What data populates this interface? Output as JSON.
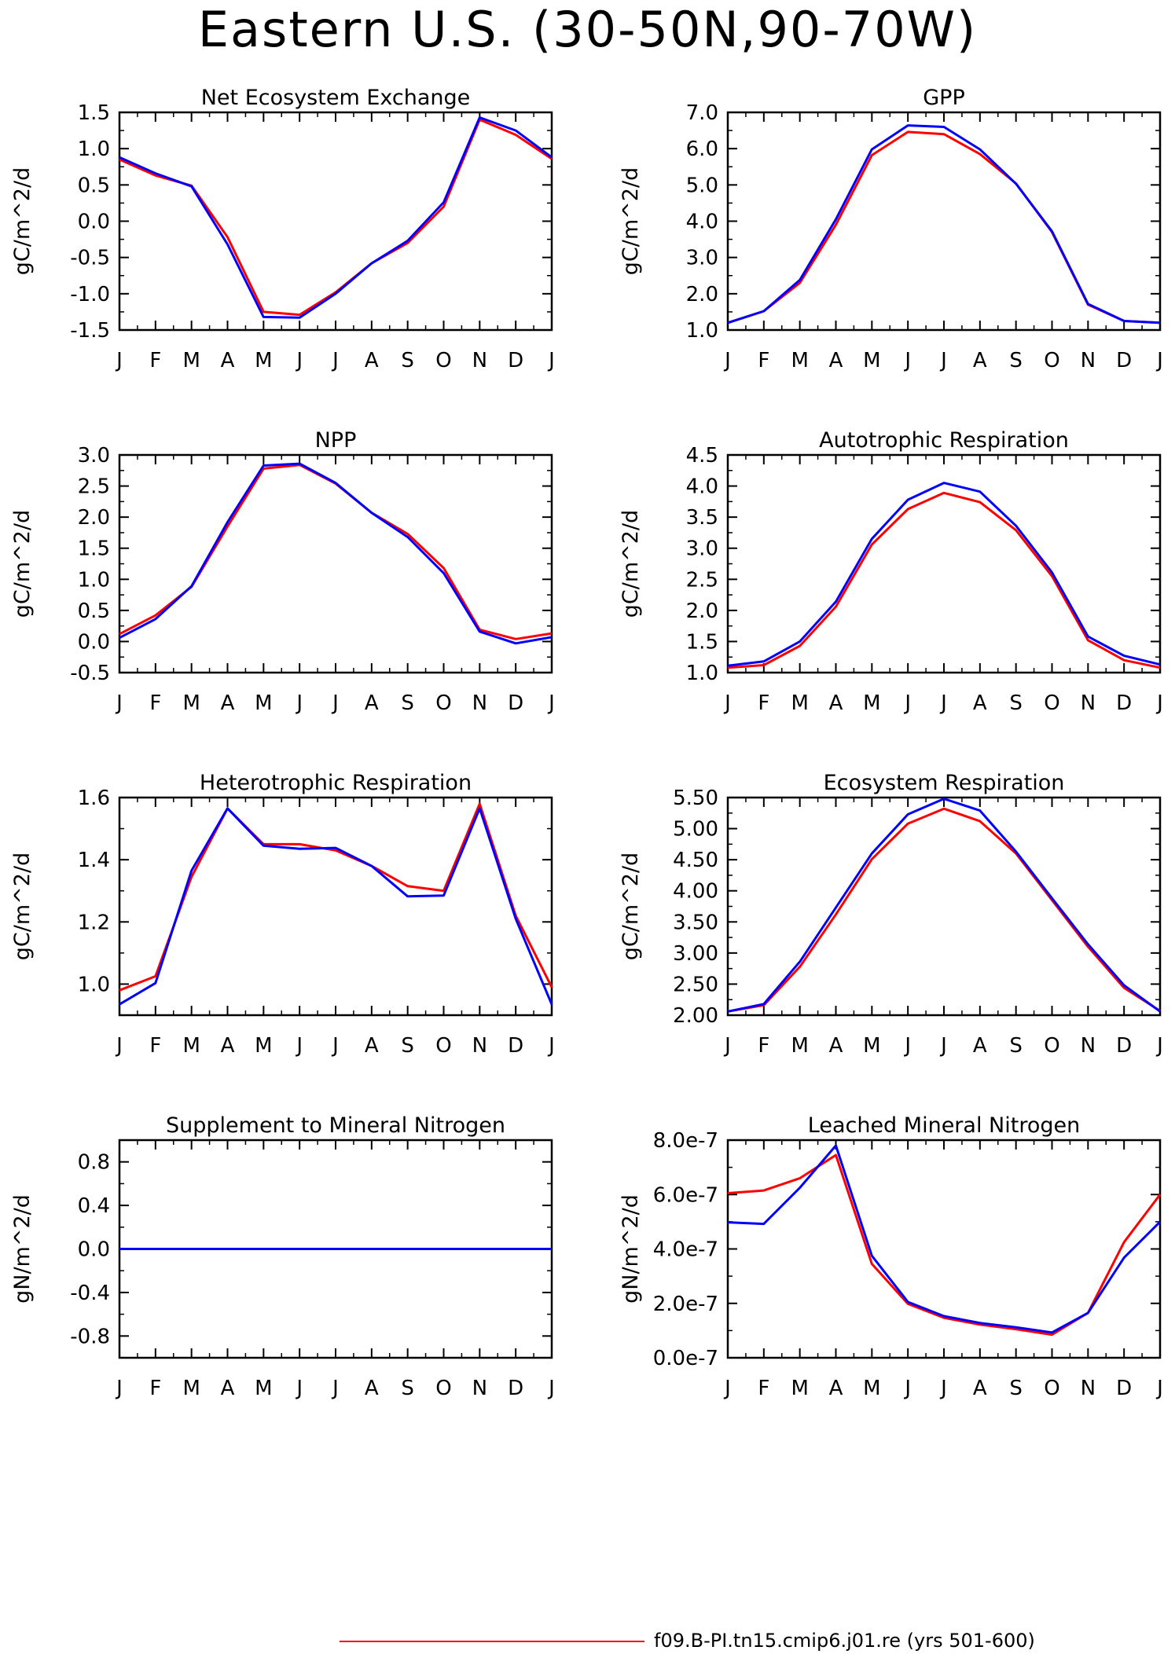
{
  "title": "Eastern U.S. (30-50N,90-70W)",
  "legend": {
    "label": "f09.B-PI.tn15.cmip6.j01.re (yrs 501-600)",
    "color": "#ff0000"
  },
  "colors": {
    "series_red": "#ff0000",
    "series_blue": "#0000ff",
    "axis": "#000000"
  },
  "chart_data": [
    {
      "type": "line",
      "title": "Net Ecosystem Exchange",
      "ylabel": "gC/m^2/d",
      "categories": [
        "J",
        "F",
        "M",
        "A",
        "M",
        "J",
        "J",
        "A",
        "S",
        "O",
        "N",
        "D",
        "J"
      ],
      "ylim": [
        -1.5,
        1.5
      ],
      "yticks": [
        -1.5,
        -1.0,
        -0.5,
        0.0,
        0.5,
        1.0,
        1.5
      ],
      "ytick_labels": [
        "-1.5",
        "-1.0",
        "-0.5",
        "0.0",
        "0.5",
        "1.0",
        "1.5"
      ],
      "series": [
        {
          "color": "#ff0000",
          "values": [
            0.85,
            0.63,
            0.49,
            -0.22,
            -1.25,
            -1.29,
            -0.98,
            -0.58,
            -0.3,
            0.2,
            1.4,
            1.19,
            0.86
          ]
        },
        {
          "color": "#0000ff",
          "values": [
            0.88,
            0.66,
            0.48,
            -0.32,
            -1.32,
            -1.33,
            -1.0,
            -0.58,
            -0.27,
            0.26,
            1.43,
            1.25,
            0.88
          ]
        }
      ]
    },
    {
      "type": "line",
      "title": "GPP",
      "ylabel": "gC/m^2/d",
      "categories": [
        "J",
        "F",
        "M",
        "A",
        "M",
        "J",
        "J",
        "A",
        "S",
        "O",
        "N",
        "D",
        "J"
      ],
      "ylim": [
        1.0,
        7.0
      ],
      "yticks": [
        1,
        2,
        3,
        4,
        5,
        6,
        7
      ],
      "ytick_labels": [
        "1.0",
        "2.0",
        "3.0",
        "4.0",
        "5.0",
        "6.0",
        "7.0"
      ],
      "series": [
        {
          "color": "#ff0000",
          "values": [
            1.2,
            1.52,
            2.3,
            3.9,
            5.82,
            6.46,
            6.4,
            5.85,
            5.04,
            3.7,
            1.7,
            1.25,
            1.2
          ]
        },
        {
          "color": "#0000ff",
          "values": [
            1.2,
            1.52,
            2.38,
            4.05,
            5.98,
            6.64,
            6.6,
            5.98,
            5.03,
            3.72,
            1.72,
            1.25,
            1.2
          ]
        }
      ]
    },
    {
      "type": "line",
      "title": "NPP",
      "ylabel": "gC/m^2/d",
      "categories": [
        "J",
        "F",
        "M",
        "A",
        "M",
        "J",
        "J",
        "A",
        "S",
        "O",
        "N",
        "D",
        "J"
      ],
      "ylim": [
        -0.5,
        3.0
      ],
      "yticks": [
        -0.5,
        0,
        0.5,
        1,
        1.5,
        2,
        2.5,
        3
      ],
      "ytick_labels": [
        "-0.5",
        "0.0",
        "0.5",
        "1.0",
        "1.5",
        "2.0",
        "2.5",
        "3.0"
      ],
      "series": [
        {
          "color": "#ff0000",
          "values": [
            0.12,
            0.42,
            0.88,
            1.85,
            2.78,
            2.84,
            2.54,
            2.07,
            1.73,
            1.18,
            0.19,
            0.04,
            0.13
          ]
        },
        {
          "color": "#0000ff",
          "values": [
            0.06,
            0.36,
            0.89,
            1.92,
            2.83,
            2.86,
            2.55,
            2.07,
            1.68,
            1.1,
            0.16,
            -0.03,
            0.07
          ]
        }
      ]
    },
    {
      "type": "line",
      "title": "Autotrophic Respiration",
      "ylabel": "gC/m^2/d",
      "categories": [
        "J",
        "F",
        "M",
        "A",
        "M",
        "J",
        "J",
        "A",
        "S",
        "O",
        "N",
        "D",
        "J"
      ],
      "ylim": [
        1.0,
        4.5
      ],
      "yticks": [
        1,
        1.5,
        2,
        2.5,
        3,
        3.5,
        4,
        4.5
      ],
      "ytick_labels": [
        "1.0",
        "1.5",
        "2.0",
        "2.5",
        "3.0",
        "3.5",
        "4.0",
        "4.5"
      ],
      "series": [
        {
          "color": "#ff0000",
          "values": [
            1.08,
            1.12,
            1.43,
            2.06,
            3.06,
            3.63,
            3.89,
            3.74,
            3.29,
            2.55,
            1.52,
            1.2,
            1.08
          ]
        },
        {
          "color": "#0000ff",
          "values": [
            1.11,
            1.18,
            1.5,
            2.14,
            3.15,
            3.78,
            4.05,
            3.91,
            3.36,
            2.61,
            1.58,
            1.27,
            1.13
          ]
        }
      ]
    },
    {
      "type": "line",
      "title": "Heterotrophic Respiration",
      "ylabel": "gC/m^2/d",
      "categories": [
        "J",
        "F",
        "M",
        "A",
        "M",
        "J",
        "J",
        "A",
        "S",
        "O",
        "N",
        "D",
        "J"
      ],
      "ylim": [
        0.9,
        1.6
      ],
      "yticks": [
        1.0,
        1.2,
        1.4,
        1.6
      ],
      "ytick_labels": [
        "1.0",
        "1.2",
        "1.4",
        "1.6"
      ],
      "series": [
        {
          "color": "#ff0000",
          "values": [
            0.98,
            1.025,
            1.345,
            1.565,
            1.45,
            1.45,
            1.43,
            1.38,
            1.315,
            1.3,
            1.58,
            1.22,
            0.99
          ]
        },
        {
          "color": "#0000ff",
          "values": [
            0.935,
            1.003,
            1.365,
            1.565,
            1.445,
            1.435,
            1.438,
            1.38,
            1.282,
            1.285,
            1.565,
            1.21,
            0.935
          ]
        }
      ]
    },
    {
      "type": "line",
      "title": "Ecosystem Respiration",
      "ylabel": "gC/m^2/d",
      "categories": [
        "J",
        "F",
        "M",
        "A",
        "M",
        "J",
        "J",
        "A",
        "S",
        "O",
        "N",
        "D",
        "J"
      ],
      "ylim": [
        2.0,
        5.5
      ],
      "yticks": [
        2,
        2.5,
        3,
        3.5,
        4,
        4.5,
        5,
        5.5
      ],
      "ytick_labels": [
        "2.00",
        "2.50",
        "3.00",
        "3.50",
        "4.00",
        "4.50",
        "5.00",
        "5.50"
      ],
      "series": [
        {
          "color": "#ff0000",
          "values": [
            2.06,
            2.16,
            2.78,
            3.62,
            4.51,
            5.08,
            5.32,
            5.12,
            4.6,
            3.85,
            3.1,
            2.44,
            2.07
          ]
        },
        {
          "color": "#0000ff",
          "values": [
            2.06,
            2.18,
            2.86,
            3.73,
            4.6,
            5.23,
            5.48,
            5.29,
            4.63,
            3.88,
            3.14,
            2.48,
            2.06
          ]
        }
      ]
    },
    {
      "type": "line",
      "title": "Supplement to Mineral Nitrogen",
      "ylabel": "gN/m^2/d",
      "categories": [
        "J",
        "F",
        "M",
        "A",
        "M",
        "J",
        "J",
        "A",
        "S",
        "O",
        "N",
        "D",
        "J"
      ],
      "ylim": [
        -1.0,
        1.0
      ],
      "yticks": [
        -0.8,
        -0.4,
        0,
        0.4,
        0.8
      ],
      "ytick_labels": [
        "-0.8",
        "-0.4",
        "0.0",
        "0.4",
        "0.8"
      ],
      "series": [
        {
          "color": "#ff0000",
          "values": [
            0,
            0,
            0,
            0,
            0,
            0,
            0,
            0,
            0,
            0,
            0,
            0,
            0
          ]
        },
        {
          "color": "#0000ff",
          "values": [
            0,
            0,
            0,
            0,
            0,
            0,
            0,
            0,
            0,
            0,
            0,
            0,
            0
          ]
        }
      ]
    },
    {
      "type": "line",
      "title": "Leached Mineral Nitrogen",
      "ylabel": "gN/m^2/d",
      "categories": [
        "J",
        "F",
        "M",
        "A",
        "M",
        "J",
        "J",
        "A",
        "S",
        "O",
        "N",
        "D",
        "J"
      ],
      "ylim": [
        0,
        8e-07
      ],
      "yticks": [
        0,
        2e-07,
        4e-07,
        6e-07,
        8e-07
      ],
      "ytick_labels": [
        "0.0e-7",
        "2.0e-7",
        "4.0e-7",
        "6.0e-7",
        "8.0e-7"
      ],
      "series": [
        {
          "color": "#ff0000",
          "values": [
            6.05e-07,
            6.15e-07,
            6.6e-07,
            7.45e-07,
            3.45e-07,
            1.98e-07,
            1.47e-07,
            1.22e-07,
            1.05e-07,
            8.5e-08,
            1.65e-07,
            4.25e-07,
            6e-07
          ]
        },
        {
          "color": "#0000ff",
          "values": [
            4.98e-07,
            4.92e-07,
            6.25e-07,
            7.8e-07,
            3.75e-07,
            2.05e-07,
            1.53e-07,
            1.28e-07,
            1.12e-07,
            9.3e-08,
            1.65e-07,
            3.68e-07,
            5e-07
          ]
        }
      ]
    }
  ]
}
